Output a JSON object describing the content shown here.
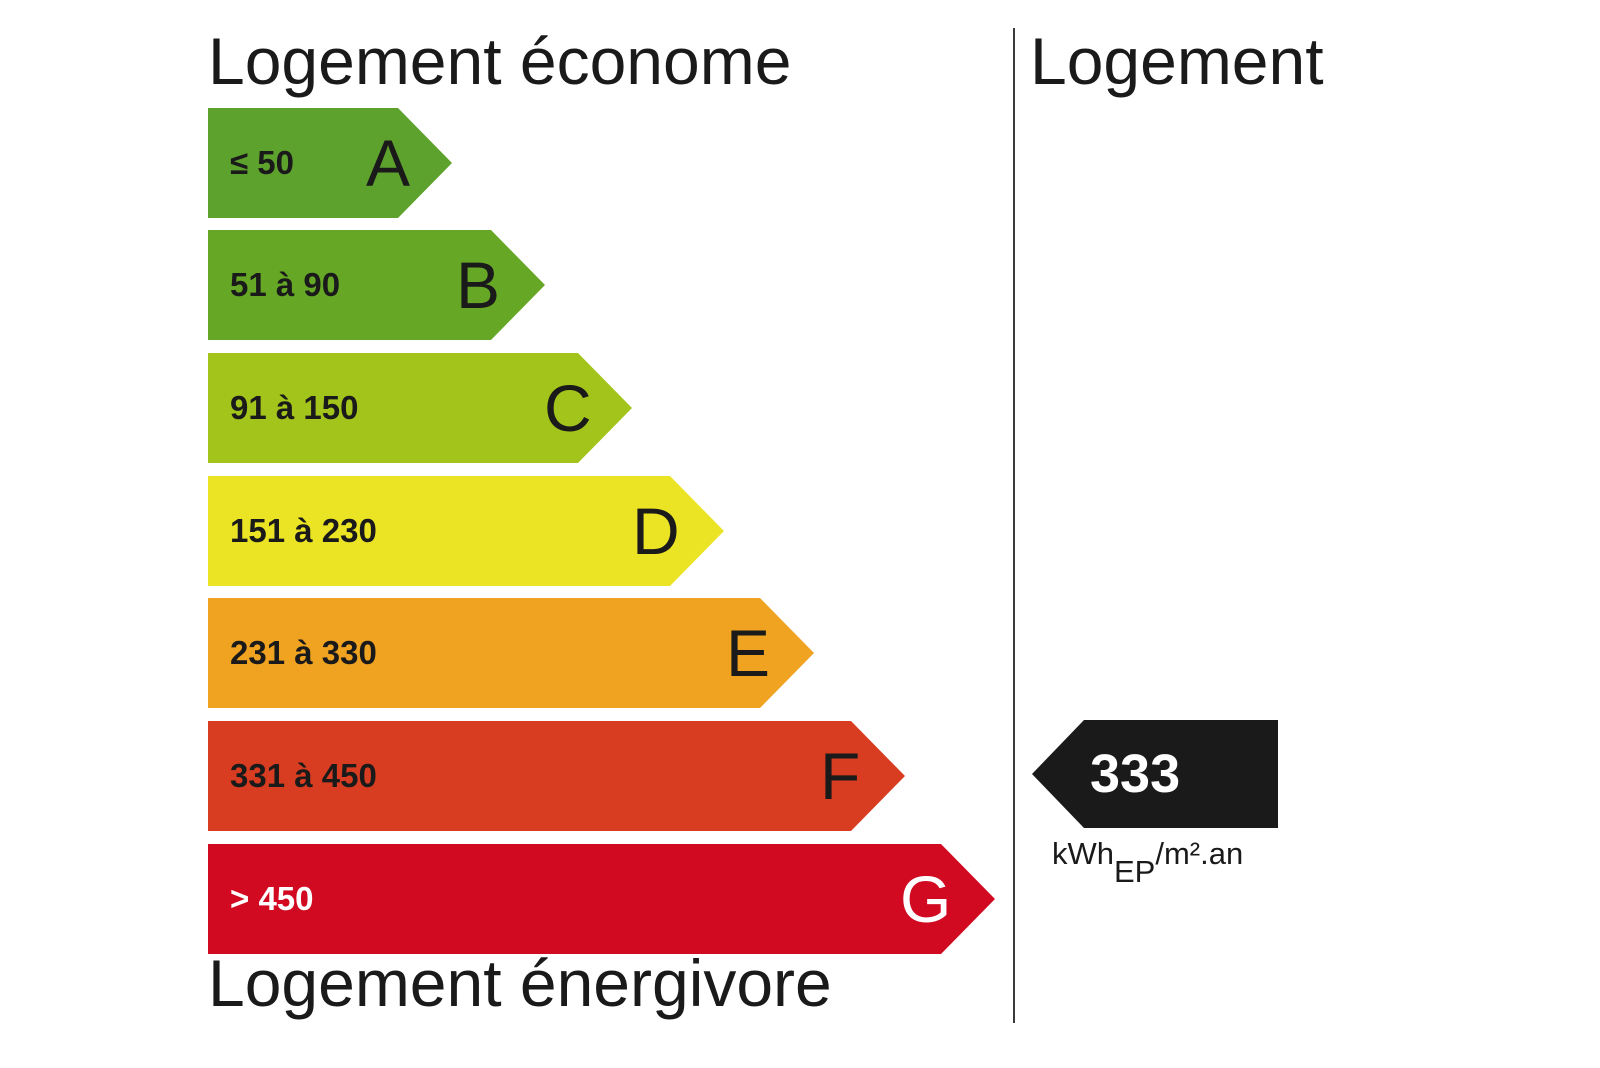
{
  "titles": {
    "top": "Logement économe",
    "bottom": "Logement énergivore",
    "right": "Logement"
  },
  "bands": [
    {
      "letter": "A",
      "range": "≤ 50",
      "color": "#5ea22e"
    },
    {
      "letter": "B",
      "range": "51 à 90",
      "color": "#66a826"
    },
    {
      "letter": "C",
      "range": "91 à 150",
      "color": "#a3c41b"
    },
    {
      "letter": "D",
      "range": "151 à 230",
      "color": "#ebe424"
    },
    {
      "letter": "E",
      "range": "231 à 330",
      "color": "#f0a321"
    },
    {
      "letter": "F",
      "range": "331 à 450",
      "color": "#d93d21"
    },
    {
      "letter": "G",
      "range": "> 450",
      "color": "#d10a21"
    }
  ],
  "marker": {
    "value": "333",
    "color": "#1a1a1a",
    "unit_main": "kWh",
    "unit_sub": "EP",
    "unit_tail": "/m².an"
  }
}
